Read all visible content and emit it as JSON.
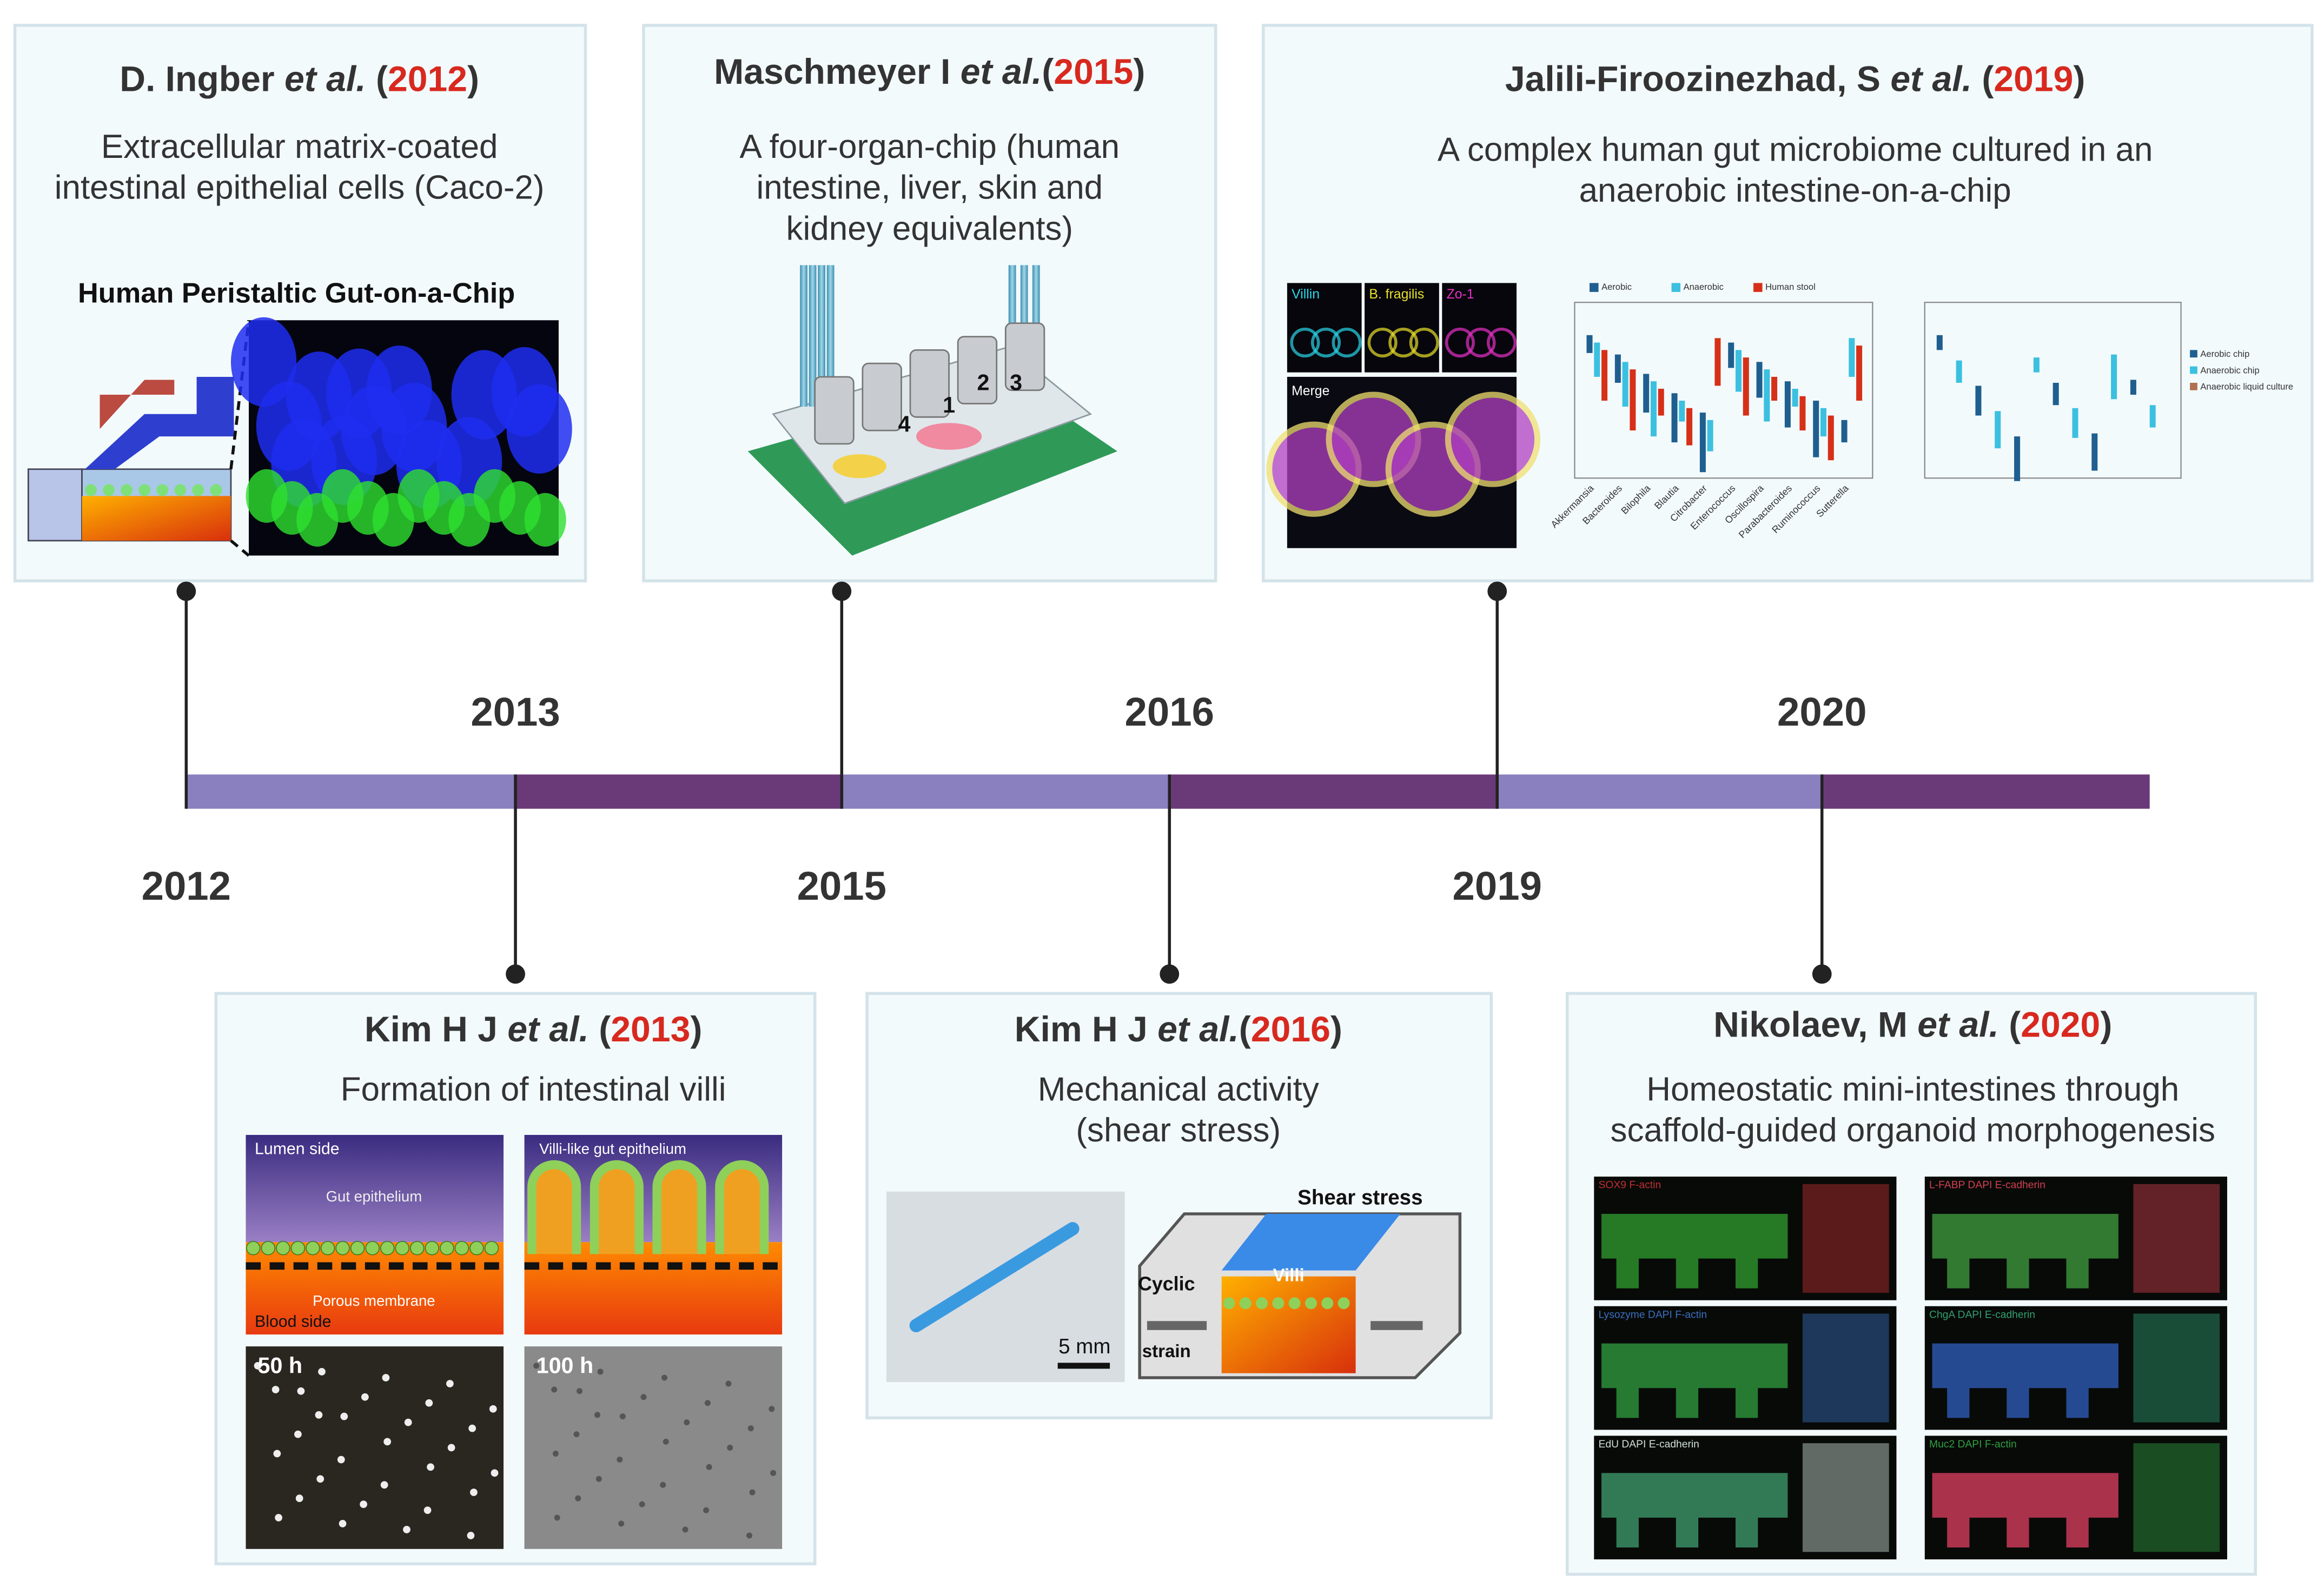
{
  "entries": [
    {
      "title_parts": [
        {
          "text": "D. Ingber ",
          "style": "bold"
        },
        {
          "text": "et al.",
          "style": "italic"
        },
        {
          "text": " (",
          "style": "bold"
        },
        {
          "text": "2012",
          "style": "year"
        },
        {
          "text": ")",
          "style": "bold"
        }
      ],
      "description": [
        "Extracellular matrix-coated",
        "intestinal epithelial cells (Caco-2)"
      ],
      "image_labels": [
        "Human Peristaltic Gut-on-a-Chip"
      ]
    },
    {
      "title_parts": [
        {
          "text": "Maschmeyer I ",
          "style": "bold"
        },
        {
          "text": "et al.",
          "style": "italic"
        },
        {
          "text": "(",
          "style": "bold"
        },
        {
          "text": "2015",
          "style": "year"
        },
        {
          "text": ")",
          "style": "bold"
        }
      ],
      "description": [
        "A four-organ-chip (human",
        "intestine, liver, skin and",
        "kidney equivalents)"
      ],
      "image_labels": [
        "1",
        "2",
        "3",
        "4"
      ]
    },
    {
      "title_parts": [
        {
          "text": "Jalili-Firoozinezhad, S ",
          "style": "bold"
        },
        {
          "text": "et al.",
          "style": "italic"
        },
        {
          "text": " (",
          "style": "bold"
        },
        {
          "text": "2019",
          "style": "year"
        },
        {
          "text": ")",
          "style": "bold"
        }
      ],
      "description": [
        "A complex human gut microbiome cultured in an",
        "anaerobic intestine-on-a-chip"
      ],
      "image_labels": [
        "Villin",
        "B. fragilis",
        "Zo-1",
        "Merge"
      ],
      "plot_legend": [
        "Aerobic",
        "Anaerobic",
        "Human stool"
      ],
      "plot2_legend": [
        "Aerobic chip",
        "Anaerobic chip",
        "Anaerobic liquid culture"
      ],
      "plot_categories": [
        "Akkermansia",
        "Bacteroides",
        "Bilophila",
        "Blautia",
        "Citrobacter",
        "Enterococcus",
        "Oscillospira",
        "Parabacteroides",
        "Ruminococcus",
        "Sutterella"
      ]
    },
    {
      "title_parts": [
        {
          "text": "Kim H J ",
          "style": "bold"
        },
        {
          "text": "et al.",
          "style": "italic"
        },
        {
          "text": " (",
          "style": "bold"
        },
        {
          "text": "2013",
          "style": "year"
        },
        {
          "text": ")",
          "style": "bold"
        }
      ],
      "description": [
        "Formation of intestinal villi"
      ],
      "image_labels": [
        "Lumen side",
        "Villi-like gut epithelium",
        "Gut epithelium",
        "Porous membrane",
        "Blood side",
        "50 h",
        "100 h"
      ]
    },
    {
      "title_parts": [
        {
          "text": "Kim H J ",
          "style": "bold"
        },
        {
          "text": "et al.",
          "style": "italic"
        },
        {
          "text": "(",
          "style": "bold"
        },
        {
          "text": "2016",
          "style": "year"
        },
        {
          "text": ")",
          "style": "bold"
        }
      ],
      "description": [
        "Mechanical activity",
        "(shear stress)"
      ],
      "image_labels": [
        "5 mm",
        "Shear stress",
        "Cyclic",
        "strain",
        "Villi"
      ]
    },
    {
      "title_parts": [
        {
          "text": "Nikolaev, M ",
          "style": "bold"
        },
        {
          "text": "et al.",
          "style": "italic"
        },
        {
          "text": " (",
          "style": "bold"
        },
        {
          "text": "2020",
          "style": "year"
        },
        {
          "text": ")",
          "style": "bold"
        }
      ],
      "description": [
        "Homeostatic mini-intestines through",
        "scaffold-guided organoid morphogenesis"
      ],
      "image_labels": [
        "SOX9 F-actin",
        "L-FABP DAPI E-cadherin",
        "Lysozyme DAPI F-actin",
        "ChgA DAPI E-cadherin",
        "EdU DAPI E-cadherin",
        "Muc2 DAPI F-actin"
      ]
    }
  ]
}
